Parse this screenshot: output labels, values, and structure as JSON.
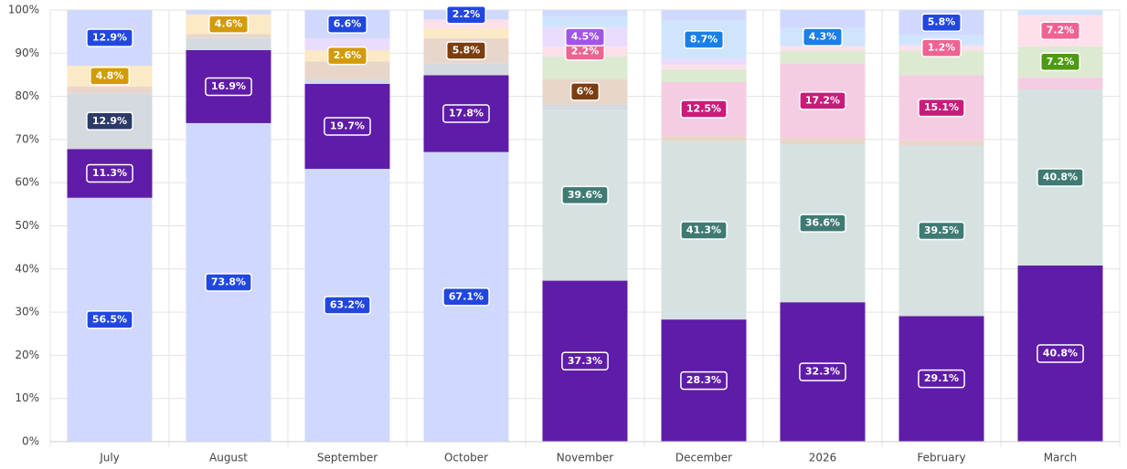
{
  "chart_data": {
    "type": "stacked_bar_percent",
    "categories": [
      "July",
      "August",
      "September",
      "October",
      "November",
      "December",
      "2026",
      "February",
      "March"
    ],
    "ylim": [
      0,
      100
    ],
    "yticks": [
      {
        "value": 0,
        "label": "0%"
      },
      {
        "value": 10,
        "label": "10%"
      },
      {
        "value": 20,
        "label": "20%"
      },
      {
        "value": 30,
        "label": "30%"
      },
      {
        "value": 40,
        "label": "40%"
      },
      {
        "value": 50,
        "label": "50%"
      },
      {
        "value": 60,
        "label": "60%"
      },
      {
        "value": 70,
        "label": "70%"
      },
      {
        "value": 80,
        "label": "80%"
      },
      {
        "value": 90,
        "label": "90%"
      },
      {
        "value": 100,
        "label": "100%"
      }
    ],
    "grid": true,
    "series": [
      {
        "color": "#d1d8fd",
        "label_color": "#2147e0",
        "values": [
          56.5,
          73.8,
          63.2,
          67.1,
          null,
          null,
          null,
          null,
          null
        ],
        "value_labels": [
          "56.5%",
          "73.8%",
          "63.2%",
          "67.1%",
          null,
          null,
          null,
          null,
          null
        ]
      },
      {
        "color": "#5f1ca8",
        "label_color": "#5f1ca8",
        "values": [
          11.3,
          16.9,
          19.7,
          17.8,
          37.3,
          28.3,
          32.3,
          29.1,
          40.8
        ],
        "value_labels": [
          "11.3%",
          "16.9%",
          "19.7%",
          "17.8%",
          "37.3%",
          "28.3%",
          "32.3%",
          "29.1%",
          "40.8%"
        ]
      },
      {
        "color": "#d6e2e2",
        "label_color": "#3f7a73",
        "values": [
          null,
          null,
          null,
          null,
          39.6,
          41.3,
          36.6,
          39.5,
          40.8
        ],
        "value_labels": [
          null,
          null,
          null,
          null,
          "39.6%",
          "41.3%",
          "36.6%",
          "39.5%",
          "40.8%"
        ]
      },
      {
        "color": "#d5d9e0",
        "label_color": "#2b3a67",
        "values": [
          12.9,
          2.9,
          1,
          2.8,
          1.2,
          null,
          null,
          null,
          null
        ],
        "value_labels": [
          "12.9%",
          null,
          null,
          null,
          null,
          null,
          null,
          null,
          null
        ]
      },
      {
        "color": "#e9d6cb",
        "label_color": "#7b3e10",
        "values": [
          1.6,
          0.8,
          4.2,
          5.8,
          6,
          1.2,
          1.5,
          1.2,
          null
        ],
        "value_labels": [
          null,
          null,
          null,
          "5.8%",
          "6%",
          null,
          null,
          null,
          null
        ]
      },
      {
        "color": "#fce9c5",
        "label_color": "#d39b07",
        "values": [
          4.8,
          4.6,
          2.6,
          2.2,
          null,
          null,
          null,
          null,
          null
        ],
        "value_labels": [
          "4.8%",
          "4.6%",
          "2.6%",
          null,
          null,
          null,
          null,
          null,
          null
        ]
      },
      {
        "color": "#f5cde3",
        "label_color": "#cb1b7a",
        "values": [
          null,
          null,
          null,
          null,
          null,
          12.5,
          17.2,
          15.1,
          2.8
        ],
        "value_labels": [
          null,
          null,
          null,
          null,
          null,
          "12.5%",
          "17.2%",
          "15.1%",
          null
        ]
      },
      {
        "color": "#dcead2",
        "label_color": "#4e9a10",
        "values": [
          null,
          null,
          null,
          null,
          5.2,
          3,
          3,
          5.7,
          7.2
        ],
        "value_labels": [
          null,
          null,
          null,
          null,
          null,
          null,
          null,
          null,
          "7.2%"
        ]
      },
      {
        "color": "#fde0ea",
        "label_color": "#f06292",
        "values": [
          null,
          null,
          null,
          2.1,
          2.2,
          1,
          1,
          1.2,
          7.2
        ],
        "value_labels": [
          null,
          null,
          null,
          null,
          "2.2%",
          null,
          null,
          "1.2%",
          "7.2%"
        ]
      },
      {
        "color": "#eadcfc",
        "label_color": "#a155e8",
        "values": [
          null,
          null,
          2.7,
          null,
          4.5,
          1.5,
          null,
          null,
          null
        ],
        "value_labels": [
          null,
          null,
          null,
          null,
          "4.5%",
          null,
          null,
          null,
          null
        ]
      },
      {
        "color": "#cfe4fd",
        "label_color": "#1a7fe6",
        "values": [
          null,
          null,
          null,
          null,
          2.5,
          8.7,
          4.3,
          2.4,
          1.2
        ],
        "value_labels": [
          null,
          null,
          null,
          null,
          null,
          "8.7%",
          "4.3%",
          null,
          null
        ]
      },
      {
        "color": "#d1d8fd",
        "label_color": "#2147e0",
        "values": [
          12.9,
          1.0,
          6.6,
          2.2,
          1.5,
          2.5,
          4.1,
          5.8,
          null
        ],
        "value_labels": [
          "12.9%",
          null,
          "6.6%",
          "2.2%",
          null,
          null,
          null,
          "5.8%",
          null
        ]
      }
    ]
  }
}
